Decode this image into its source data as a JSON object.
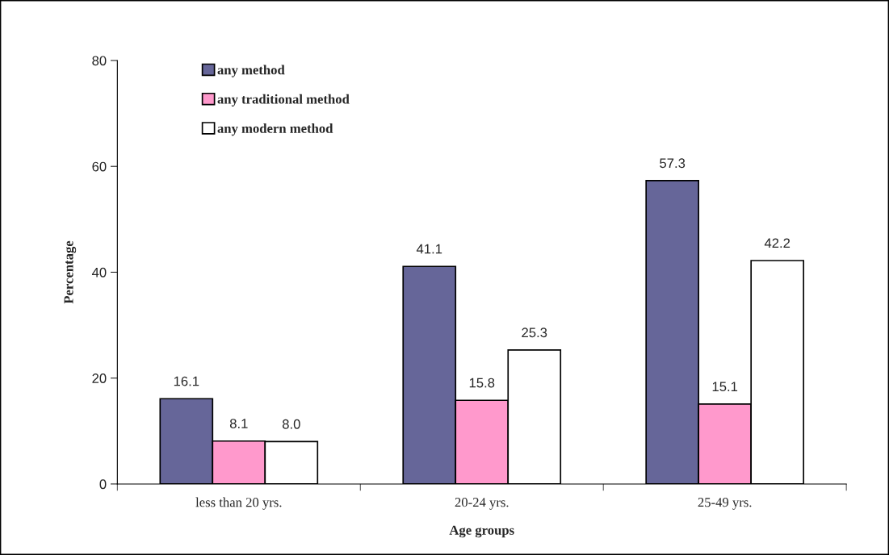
{
  "chart_data": {
    "type": "bar",
    "xlabel": "Age groups",
    "ylabel": "Percentage",
    "categories": [
      "less than 20 yrs.",
      "20-24 yrs.",
      "25-49 yrs."
    ],
    "series": [
      {
        "name": "any method",
        "color": "#666699",
        "values": [
          16.1,
          41.1,
          57.3
        ],
        "value_labels": [
          "16.1",
          "41.1",
          "57.3"
        ]
      },
      {
        "name": "any traditional method",
        "color": "#ff99cc",
        "values": [
          8.1,
          15.8,
          15.1
        ],
        "value_labels": [
          "8.1",
          "15.8",
          "15.1"
        ]
      },
      {
        "name": "any modern method",
        "color": "#ffffff",
        "values": [
          8.0,
          25.3,
          42.2
        ],
        "value_labels": [
          "8.0",
          "25.3",
          "42.2"
        ]
      }
    ],
    "ylim": [
      0,
      80
    ],
    "yticks": [
      0,
      20,
      40,
      60,
      80
    ],
    "grid": false,
    "legend": "top left"
  }
}
